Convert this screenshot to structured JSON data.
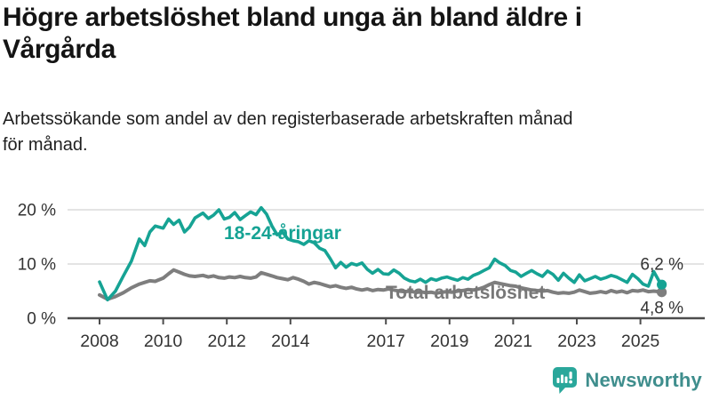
{
  "header": {
    "title_line1": "Högre arbetslöshet bland unga än bland äldre i",
    "title_line2": "Vårgårda",
    "subtitle_line1": "Arbetssökande som andel av den registerbaserade arbetskraften månad",
    "subtitle_line2": "för månad."
  },
  "branding": {
    "wordmark": "Newsworthy",
    "icon": "newsworthy-chart-bubble-icon",
    "icon_color": "#2aa79b",
    "wordmark_color": "#3f8e8d"
  },
  "chart_data": {
    "type": "line",
    "x_unit": "year (monthly share of labour force)",
    "xlim": [
      2007.8,
      2026.2
    ],
    "ylim": [
      0,
      22
    ],
    "grid": "horizontal",
    "y_ticks": [
      {
        "label": "0 %",
        "value": 0
      },
      {
        "label": "10 %",
        "value": 10
      },
      {
        "label": "20 %",
        "value": 20
      }
    ],
    "x_ticks": [
      {
        "label": "2008",
        "year": 2008
      },
      {
        "label": "2010",
        "year": 2010
      },
      {
        "label": "2012",
        "year": 2012
      },
      {
        "label": "2014",
        "year": 2014
      },
      {
        "label": "2017",
        "year": 2017
      },
      {
        "label": "2019",
        "year": 2019
      },
      {
        "label": "2021",
        "year": 2021
      },
      {
        "label": "2023",
        "year": 2023
      },
      {
        "label": "2025",
        "year": 2025
      }
    ],
    "x": [
      2008.0,
      2008.25,
      2008.5,
      2008.75,
      2009.0,
      2009.25,
      2009.42,
      2009.58,
      2009.75,
      2010.0,
      2010.17,
      2010.33,
      2010.5,
      2010.67,
      2010.83,
      2011.0,
      2011.25,
      2011.42,
      2011.58,
      2011.75,
      2011.92,
      2012.08,
      2012.25,
      2012.42,
      2012.58,
      2012.75,
      2012.92,
      2013.08,
      2013.25,
      2013.42,
      2013.58,
      2013.75,
      2013.92,
      2014.08,
      2014.25,
      2014.42,
      2014.58,
      2014.75,
      2014.92,
      2015.08,
      2015.25,
      2015.42,
      2015.58,
      2015.75,
      2015.92,
      2016.08,
      2016.25,
      2016.42,
      2016.58,
      2016.75,
      2016.92,
      2017.08,
      2017.25,
      2017.42,
      2017.58,
      2017.75,
      2017.92,
      2018.08,
      2018.25,
      2018.42,
      2018.58,
      2018.75,
      2018.92,
      2019.08,
      2019.25,
      2019.42,
      2019.58,
      2019.75,
      2019.92,
      2020.08,
      2020.25,
      2020.42,
      2020.58,
      2020.75,
      2020.92,
      2021.08,
      2021.25,
      2021.42,
      2021.58,
      2021.75,
      2021.92,
      2022.08,
      2022.25,
      2022.42,
      2022.58,
      2022.75,
      2022.92,
      2023.08,
      2023.25,
      2023.42,
      2023.58,
      2023.75,
      2023.92,
      2024.08,
      2024.25,
      2024.42,
      2024.58,
      2024.75,
      2024.92,
      2025.08,
      2025.25,
      2025.42,
      2025.58,
      2025.67
    ],
    "series": [
      {
        "name": "Total arbetslöshet",
        "color": "#7e7e7e",
        "end_label": "4,8 %",
        "end_value": 4.8,
        "values": [
          4.3,
          3.5,
          4.0,
          4.7,
          5.6,
          6.3,
          6.6,
          6.9,
          6.8,
          7.4,
          8.2,
          8.9,
          8.5,
          8.1,
          7.8,
          7.7,
          7.9,
          7.6,
          7.8,
          7.5,
          7.4,
          7.6,
          7.5,
          7.7,
          7.5,
          7.4,
          7.6,
          8.4,
          8.1,
          7.8,
          7.5,
          7.3,
          7.1,
          7.5,
          7.2,
          6.8,
          6.3,
          6.6,
          6.4,
          6.1,
          5.8,
          6.0,
          5.7,
          5.5,
          5.7,
          5.4,
          5.2,
          5.4,
          5.1,
          5.3,
          5.2,
          5.4,
          5.2,
          5.0,
          4.9,
          5.0,
          4.8,
          4.9,
          4.7,
          4.8,
          4.6,
          4.8,
          4.9,
          4.8,
          5.0,
          5.1,
          5.3,
          5.2,
          5.4,
          5.7,
          6.2,
          6.6,
          6.4,
          6.2,
          6.0,
          5.9,
          5.6,
          5.4,
          5.2,
          5.1,
          5.0,
          5.1,
          4.8,
          4.6,
          4.7,
          4.6,
          4.8,
          5.2,
          4.9,
          4.6,
          4.7,
          4.9,
          4.7,
          5.1,
          4.8,
          5.0,
          4.7,
          5.1,
          5.0,
          5.2,
          4.9,
          5.0,
          4.9,
          4.8
        ]
      },
      {
        "name": "18-24-åringar",
        "color": "#16a394",
        "end_label": "6,2 %",
        "end_value": 6.2,
        "values": [
          6.7,
          3.4,
          5.0,
          7.8,
          10.5,
          14.6,
          13.4,
          15.9,
          17.0,
          16.6,
          18.3,
          17.3,
          18.1,
          15.9,
          16.8,
          18.5,
          19.4,
          18.4,
          19.0,
          20.0,
          18.3,
          18.6,
          19.5,
          18.2,
          18.9,
          19.6,
          19.1,
          20.4,
          19.2,
          17.0,
          15.4,
          15.9,
          14.6,
          14.3,
          14.1,
          13.6,
          14.3,
          13.9,
          12.9,
          12.5,
          11.0,
          9.3,
          10.3,
          9.4,
          10.1,
          9.8,
          10.2,
          9.0,
          8.3,
          9.0,
          8.2,
          8.1,
          8.9,
          8.3,
          7.4,
          6.9,
          6.7,
          7.2,
          6.6,
          7.3,
          7.0,
          7.4,
          7.6,
          7.3,
          7.0,
          7.5,
          7.2,
          7.9,
          8.3,
          8.8,
          9.3,
          10.9,
          10.2,
          9.7,
          8.8,
          8.5,
          7.7,
          8.3,
          8.8,
          8.2,
          7.7,
          8.7,
          8.1,
          7.0,
          8.3,
          7.4,
          6.6,
          8.0,
          6.9,
          7.3,
          7.7,
          7.2,
          7.5,
          7.9,
          7.6,
          7.1,
          6.6,
          8.1,
          7.3,
          6.3,
          5.9,
          8.6,
          6.9,
          6.2
        ]
      }
    ]
  }
}
